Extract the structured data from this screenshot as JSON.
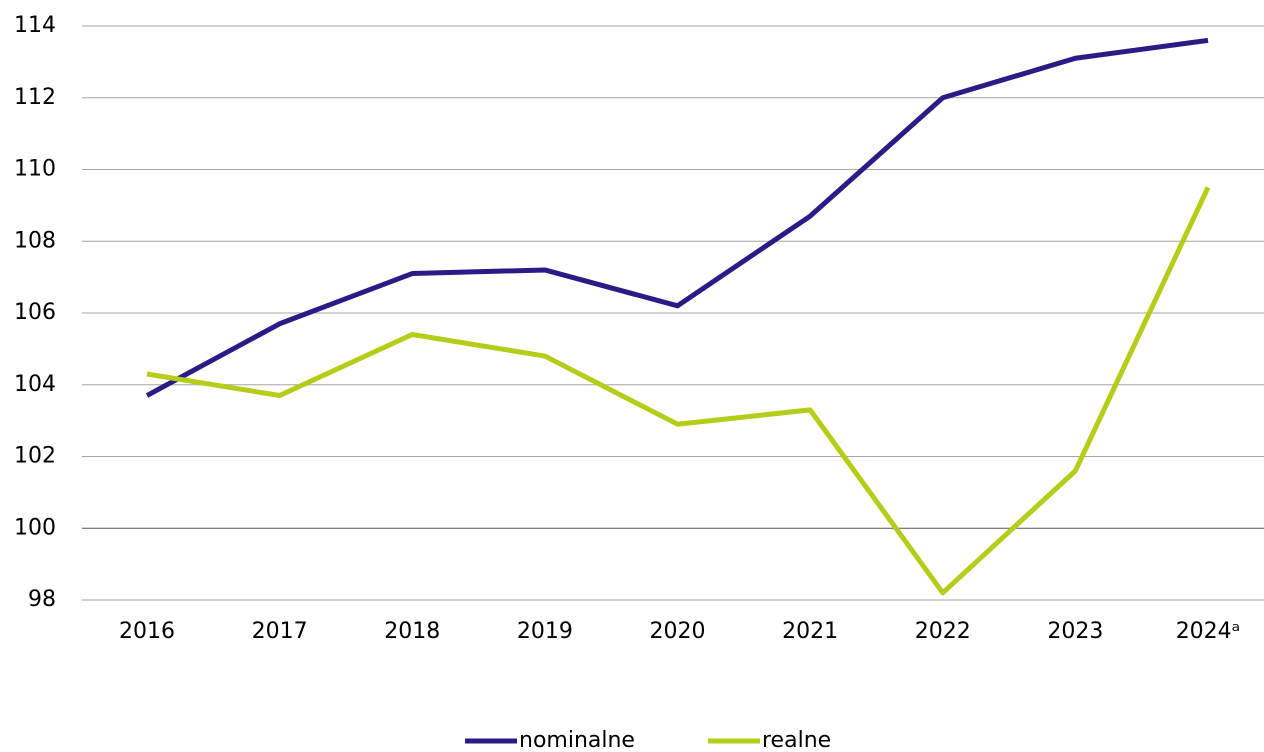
{
  "chart_data": {
    "type": "line",
    "categories": [
      "2016",
      "2017",
      "2018",
      "2019",
      "2020",
      "2021",
      "2022",
      "2023",
      "2024ᵃ"
    ],
    "series": [
      {
        "name": "nominalne",
        "color": "#2e1a87",
        "values": [
          103.7,
          105.7,
          107.1,
          107.2,
          106.2,
          108.7,
          112.0,
          113.1,
          113.6
        ]
      },
      {
        "name": "realne",
        "color": "#b5cc18",
        "values": [
          104.3,
          103.7,
          105.4,
          104.8,
          102.9,
          103.3,
          98.2,
          101.6,
          109.5
        ]
      }
    ],
    "ylim": [
      98,
      114
    ],
    "yticks": [
      98,
      100,
      102,
      104,
      106,
      108,
      110,
      112,
      114
    ],
    "grid": true,
    "x_axis_crosses": 100,
    "legend": "bottom"
  }
}
